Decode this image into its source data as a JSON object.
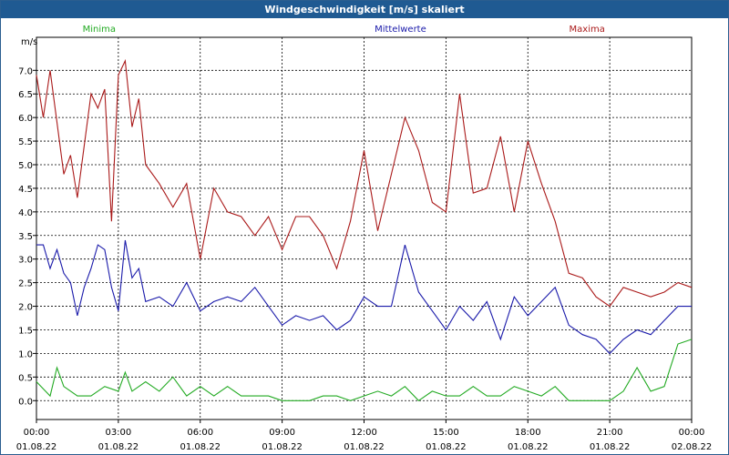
{
  "window": {
    "title": "Windgeschwindigkeit [m/s] skaliert"
  },
  "chart_data": {
    "type": "line",
    "title": "Windgeschwindigkeit [m/s] skaliert",
    "ylabel": "m/s",
    "xlabel": "",
    "ylim": [
      -0.4,
      7.7
    ],
    "yticks": [
      "0.0",
      "0.5",
      "1.0",
      "1.5",
      "2.0",
      "2.5",
      "3.0",
      "3.5",
      "4.0",
      "4.5",
      "5.0",
      "5.5",
      "6.0",
      "6.5",
      "7.0"
    ],
    "xticks": [
      {
        "time": "00:00",
        "date": "01.08.22"
      },
      {
        "time": "03:00",
        "date": "01.08.22"
      },
      {
        "time": "06:00",
        "date": "01.08.22"
      },
      {
        "time": "09:00",
        "date": "01.08.22"
      },
      {
        "time": "12:00",
        "date": "01.08.22"
      },
      {
        "time": "15:00",
        "date": "01.08.22"
      },
      {
        "time": "18:00",
        "date": "01.08.22"
      },
      {
        "time": "21:00",
        "date": "01.08.22"
      },
      {
        "time": "00:00",
        "date": "02.08.22"
      }
    ],
    "x_unit": "hours since 01.08.22 00:00",
    "grid": true,
    "legend_position": "top",
    "series": [
      {
        "name": "Minima",
        "color": "#22aa22",
        "x": [
          0,
          0.5,
          0.75,
          1,
          1.5,
          2,
          2.5,
          3,
          3.25,
          3.5,
          4,
          4.5,
          5,
          5.5,
          6,
          6.5,
          7,
          7.5,
          8,
          8.5,
          9,
          9.5,
          10,
          10.5,
          11,
          11.5,
          12,
          12.5,
          13,
          13.5,
          14,
          14.5,
          15,
          15.5,
          16,
          16.5,
          17,
          17.5,
          18,
          18.5,
          19,
          19.5,
          20,
          20.5,
          21,
          21.5,
          22,
          22.5,
          23,
          23.5,
          24
        ],
        "values": [
          0.4,
          0.1,
          0.7,
          0.3,
          0.1,
          0.1,
          0.3,
          0.2,
          0.6,
          0.2,
          0.4,
          0.2,
          0.5,
          0.1,
          0.3,
          0.1,
          0.3,
          0.1,
          0.1,
          0.1,
          0.0,
          0.0,
          0.0,
          0.1,
          0.1,
          0.0,
          0.1,
          0.2,
          0.1,
          0.3,
          0.0,
          0.2,
          0.1,
          0.1,
          0.3,
          0.1,
          0.1,
          0.3,
          0.2,
          0.1,
          0.3,
          0.0,
          0.0,
          0.0,
          0.0,
          0.2,
          0.7,
          0.2,
          0.3,
          1.2,
          1.3
        ]
      },
      {
        "name": "Mittelwerte",
        "color": "#1a1aaa",
        "x": [
          0,
          0.25,
          0.5,
          0.75,
          1,
          1.25,
          1.5,
          1.75,
          2,
          2.25,
          2.5,
          2.75,
          3,
          3.25,
          3.5,
          3.75,
          4,
          4.5,
          5,
          5.5,
          6,
          6.5,
          7,
          7.5,
          8,
          8.5,
          9,
          9.5,
          10,
          10.5,
          11,
          11.5,
          12,
          12.5,
          13,
          13.5,
          14,
          14.5,
          15,
          15.5,
          16,
          16.5,
          17,
          17.5,
          18,
          18.5,
          19,
          19.5,
          20,
          20.5,
          21,
          21.5,
          22,
          22.5,
          23,
          23.5,
          24
        ],
        "values": [
          3.3,
          3.3,
          2.8,
          3.2,
          2.7,
          2.5,
          1.8,
          2.4,
          2.8,
          3.3,
          3.2,
          2.4,
          1.9,
          3.4,
          2.6,
          2.8,
          2.1,
          2.2,
          2.0,
          2.5,
          1.9,
          2.1,
          2.2,
          2.1,
          2.4,
          2.0,
          1.6,
          1.8,
          1.7,
          1.8,
          1.5,
          1.7,
          2.2,
          2.0,
          2.0,
          3.3,
          2.3,
          1.9,
          1.5,
          2.0,
          1.7,
          2.1,
          1.3,
          2.2,
          1.8,
          2.1,
          2.4,
          1.6,
          1.4,
          1.3,
          1.0,
          1.3,
          1.5,
          1.4,
          1.7,
          2.0,
          2.0
        ]
      },
      {
        "name": "Maxima",
        "color": "#aa1a1a",
        "x": [
          0,
          0.25,
          0.5,
          0.75,
          1,
          1.25,
          1.5,
          2,
          2.25,
          2.5,
          2.75,
          3,
          3.25,
          3.5,
          3.75,
          4,
          4.5,
          5,
          5.5,
          6,
          6.5,
          7,
          7.5,
          8,
          8.5,
          9,
          9.5,
          10,
          10.5,
          11,
          11.5,
          12,
          12.5,
          13,
          13.5,
          14,
          14.5,
          15,
          15.5,
          16,
          16.5,
          17,
          17.5,
          18,
          18.5,
          19,
          19.5,
          20,
          20.5,
          21,
          21.5,
          22,
          22.5,
          23,
          23.5,
          24
        ],
        "values": [
          6.9,
          6.0,
          7.0,
          5.9,
          4.8,
          5.2,
          4.3,
          6.5,
          6.2,
          6.6,
          3.8,
          6.9,
          7.2,
          5.8,
          6.4,
          5.0,
          4.6,
          4.1,
          4.6,
          3.0,
          4.5,
          4.0,
          3.9,
          3.5,
          3.9,
          3.2,
          3.9,
          3.9,
          3.5,
          2.8,
          3.8,
          5.3,
          3.6,
          4.8,
          6.0,
          5.3,
          4.2,
          4.0,
          6.5,
          4.4,
          4.5,
          5.6,
          4.0,
          5.5,
          4.6,
          3.8,
          2.7,
          2.6,
          2.2,
          2.0,
          2.4,
          2.3,
          2.2,
          2.3,
          2.5,
          2.4
        ]
      }
    ]
  }
}
